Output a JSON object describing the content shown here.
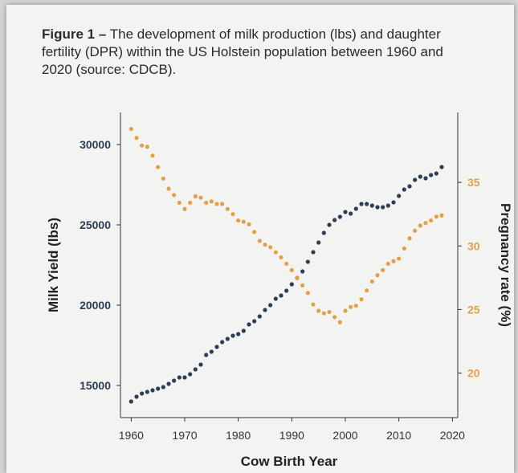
{
  "caption": {
    "figure_label": "Figure 1 –",
    "text": "The development of milk production (lbs) and daughter fertility (DPR) within the US Holstein population between 1960 and 2020 (source: CDCB)."
  },
  "colors": {
    "milk": "#2b3e55",
    "pregnancy": "#e2a04a",
    "axis": "#333333"
  },
  "chart_data": {
    "type": "scatter",
    "title": "",
    "xlabel": "Cow Birth Year",
    "ylabel": "Milk Yield (lbs)",
    "y2label": "Pregnancy rate (%)",
    "xlim": [
      1958,
      2021
    ],
    "ylim": [
      13000,
      32000
    ],
    "y2lim": [
      16.5,
      40.5
    ],
    "x_ticks": [
      1960,
      1970,
      1980,
      1990,
      2000,
      2010,
      2020
    ],
    "y_ticks": [
      15000,
      20000,
      25000,
      30000
    ],
    "y2_ticks": [
      20,
      25,
      30,
      35
    ],
    "grid": false,
    "legend": "none",
    "series": [
      {
        "axis": "left",
        "x": [
          1960,
          1961,
          1962,
          1963,
          1964,
          1965,
          1966,
          1967,
          1968,
          1969,
          1970,
          1971,
          1972,
          1973,
          1974,
          1975,
          1976,
          1977,
          1978,
          1979,
          1980,
          1981,
          1982,
          1983,
          1984,
          1985,
          1986,
          1987,
          1988,
          1989,
          1990,
          1991,
          1992,
          1993,
          1994,
          1995,
          1996,
          1997,
          1998,
          1999,
          2000,
          2001,
          2002,
          2003,
          2004,
          2005,
          2006,
          2007,
          2008,
          2009,
          2010,
          2011,
          2012,
          2013,
          2014,
          2015,
          2016,
          2017,
          2018
        ],
        "values": [
          14000,
          14300,
          14500,
          14600,
          14700,
          14800,
          14900,
          15100,
          15300,
          15500,
          15500,
          15700,
          16000,
          16300,
          16900,
          17100,
          17400,
          17700,
          17900,
          18100,
          18200,
          18400,
          18800,
          19000,
          19300,
          19700,
          20000,
          20400,
          20600,
          20900,
          21300,
          21700,
          22100,
          22700,
          23300,
          23900,
          24500,
          25000,
          25300,
          25500,
          25800,
          25700,
          26000,
          26300,
          26300,
          26200,
          26100,
          26100,
          26200,
          26400,
          26800,
          27200,
          27400,
          27800,
          28000,
          27900,
          28100,
          28200,
          28600
        ]
      },
      {
        "axis": "right",
        "x": [
          1960,
          1961,
          1962,
          1963,
          1964,
          1965,
          1966,
          1967,
          1968,
          1969,
          1970,
          1971,
          1972,
          1973,
          1974,
          1975,
          1976,
          1977,
          1978,
          1979,
          1980,
          1981,
          1982,
          1983,
          1984,
          1985,
          1986,
          1987,
          1988,
          1989,
          1990,
          1991,
          1992,
          1993,
          1994,
          1995,
          1996,
          1997,
          1998,
          1999,
          2000,
          2001,
          2002,
          2003,
          2004,
          2005,
          2006,
          2007,
          2008,
          2009,
          2010,
          2011,
          2012,
          2013,
          2014,
          2015,
          2016,
          2017,
          2018
        ],
        "values": [
          39.2,
          38.5,
          37.9,
          37.8,
          37.1,
          36.2,
          35.3,
          34.5,
          34.0,
          33.4,
          32.9,
          33.4,
          33.9,
          33.8,
          33.4,
          33.5,
          33.3,
          33.3,
          32.9,
          32.5,
          32.0,
          31.9,
          31.7,
          31.1,
          30.4,
          30.1,
          29.9,
          29.5,
          29.1,
          28.6,
          28.1,
          27.5,
          26.9,
          26.3,
          25.4,
          24.9,
          24.7,
          24.8,
          24.4,
          24.0,
          24.9,
          25.2,
          25.3,
          25.8,
          26.5,
          27.2,
          27.7,
          28.1,
          28.6,
          28.8,
          29.0,
          29.8,
          30.6,
          31.2,
          31.6,
          31.8,
          32.0,
          32.3,
          32.4
        ]
      }
    ]
  }
}
